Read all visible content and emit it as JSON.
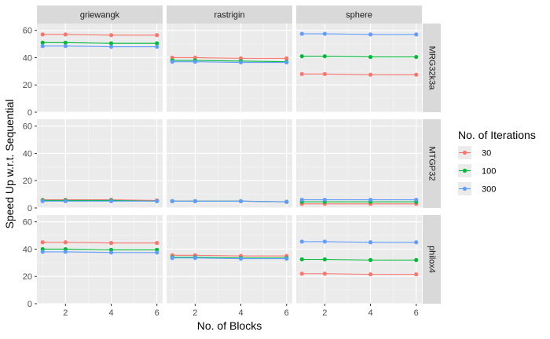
{
  "chart_data": {
    "type": "line",
    "xlabel": "No. of Blocks",
    "ylabel": "Speed Up w.r.t. Sequential",
    "x": [
      1,
      2,
      4,
      6
    ],
    "xticks": [
      2,
      4,
      6
    ],
    "xlim": [
      0.75,
      6.25
    ],
    "ylim": [
      0,
      65
    ],
    "yticks": [
      0,
      20,
      40,
      60
    ],
    "columns": [
      "griewangk",
      "rastrigin",
      "sphere"
    ],
    "rows": [
      "MRG32k3a",
      "MTGP32",
      "philox4"
    ],
    "legend": {
      "title": "No. of Iterations",
      "placement": "right",
      "entries": [
        {
          "label": "30",
          "color": "#F8766D"
        },
        {
          "label": "100",
          "color": "#00BA38"
        },
        {
          "label": "300",
          "color": "#619CFF"
        }
      ]
    },
    "panels": [
      {
        "row": "MRG32k3a",
        "col": "griewangk",
        "series": [
          {
            "name": "30",
            "values": [
              57,
              57,
              56.5,
              56.5
            ]
          },
          {
            "name": "100",
            "values": [
              51,
              51,
              50.5,
              50.5
            ]
          },
          {
            "name": "300",
            "values": [
              48.5,
              48.5,
              48,
              48
            ]
          }
        ]
      },
      {
        "row": "MRG32k3a",
        "col": "rastrigin",
        "series": [
          {
            "name": "30",
            "values": [
              40,
              40,
              39.5,
              39.5
            ]
          },
          {
            "name": "100",
            "values": [
              38,
              38,
              37.5,
              37
            ]
          },
          {
            "name": "300",
            "values": [
              37,
              37,
              36.5,
              36.5
            ]
          }
        ]
      },
      {
        "row": "MRG32k3a",
        "col": "sphere",
        "series": [
          {
            "name": "30",
            "values": [
              28,
              28,
              27.5,
              27.5
            ]
          },
          {
            "name": "100",
            "values": [
              41,
              41,
              40.5,
              40.5
            ]
          },
          {
            "name": "300",
            "values": [
              57.5,
              57.5,
              57,
              57
            ]
          }
        ]
      },
      {
        "row": "MTGP32",
        "col": "griewangk",
        "series": [
          {
            "name": "30",
            "values": [
              6,
              6,
              6,
              5.5
            ]
          },
          {
            "name": "100",
            "values": [
              5.5,
              5.5,
              5.5,
              5
            ]
          },
          {
            "name": "300",
            "values": [
              5,
              5,
              5,
              5
            ]
          }
        ]
      },
      {
        "row": "MTGP32",
        "col": "rastrigin",
        "series": [
          {
            "name": "30",
            "values": [
              5,
              5,
              5,
              4.5
            ]
          },
          {
            "name": "100",
            "values": [
              5,
              5,
              5,
              4.5
            ]
          },
          {
            "name": "300",
            "values": [
              5,
              5,
              5,
              4.5
            ]
          }
        ]
      },
      {
        "row": "MTGP32",
        "col": "sphere",
        "series": [
          {
            "name": "30",
            "values": [
              3,
              3,
              3,
              3
            ]
          },
          {
            "name": "100",
            "values": [
              4.5,
              4.5,
              4.5,
              4.5
            ]
          },
          {
            "name": "300",
            "values": [
              6,
              6,
              6,
              6
            ]
          }
        ]
      },
      {
        "row": "philox4",
        "col": "griewangk",
        "series": [
          {
            "name": "30",
            "values": [
              45,
              45,
              44.5,
              44.5
            ]
          },
          {
            "name": "100",
            "values": [
              40,
              40,
              39.5,
              39.5
            ]
          },
          {
            "name": "300",
            "values": [
              38,
              38,
              37.5,
              37.5
            ]
          }
        ]
      },
      {
        "row": "philox4",
        "col": "rastrigin",
        "series": [
          {
            "name": "30",
            "values": [
              35.5,
              35.5,
              35,
              35
            ]
          },
          {
            "name": "100",
            "values": [
              34,
              34,
              33.5,
              33.5
            ]
          },
          {
            "name": "300",
            "values": [
              33.5,
              33.5,
              33,
              33
            ]
          }
        ]
      },
      {
        "row": "philox4",
        "col": "sphere",
        "series": [
          {
            "name": "30",
            "values": [
              22,
              22,
              21.5,
              21.5
            ]
          },
          {
            "name": "100",
            "values": [
              32.5,
              32.5,
              32,
              32
            ]
          },
          {
            "name": "300",
            "values": [
              45.5,
              45.5,
              45,
              45
            ]
          }
        ]
      }
    ]
  }
}
